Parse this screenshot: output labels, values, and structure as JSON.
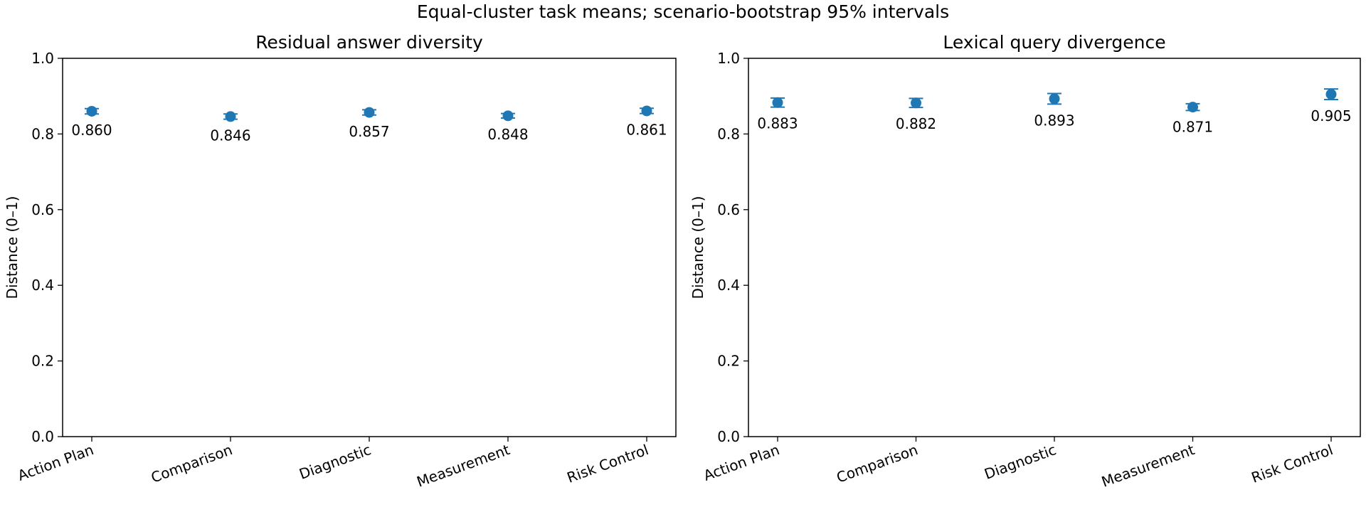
{
  "figure": {
    "title": "Equal-cluster task means; scenario-bootstrap 95% intervals"
  },
  "chart_data": [
    {
      "type": "scatter",
      "title": "Residual answer diversity",
      "xlabel": "",
      "ylabel": "Distance (0–1)",
      "categories": [
        "Action Plan",
        "Comparison",
        "Diagnostic",
        "Measurement",
        "Risk Control"
      ],
      "series": [
        {
          "values": [
            0.86,
            0.846,
            0.857,
            0.848,
            0.861
          ],
          "ci_low": [
            0.853,
            0.839,
            0.85,
            0.842,
            0.854
          ],
          "ci_high": [
            0.867,
            0.853,
            0.864,
            0.854,
            0.868
          ],
          "labels": [
            "0.860",
            "0.846",
            "0.857",
            "0.848",
            "0.861"
          ],
          "color": "#1f77b4"
        }
      ],
      "ylim": [
        0,
        1
      ],
      "yticks": [
        "0.0",
        "0.2",
        "0.4",
        "0.6",
        "0.8",
        "1.0"
      ],
      "grid": false
    },
    {
      "type": "scatter",
      "title": "Lexical query divergence",
      "xlabel": "",
      "ylabel": "Distance (0–1)",
      "categories": [
        "Action Plan",
        "Comparison",
        "Diagnostic",
        "Measurement",
        "Risk Control"
      ],
      "series": [
        {
          "values": [
            0.883,
            0.882,
            0.893,
            0.871,
            0.905
          ],
          "ci_low": [
            0.871,
            0.87,
            0.879,
            0.862,
            0.891
          ],
          "ci_high": [
            0.895,
            0.894,
            0.907,
            0.88,
            0.919
          ],
          "labels": [
            "0.883",
            "0.882",
            "0.893",
            "0.871",
            "0.905"
          ],
          "color": "#1f77b4"
        }
      ],
      "ylim": [
        0,
        1
      ],
      "yticks": [
        "0.0",
        "0.2",
        "0.4",
        "0.6",
        "0.8",
        "1.0"
      ],
      "grid": false
    }
  ]
}
